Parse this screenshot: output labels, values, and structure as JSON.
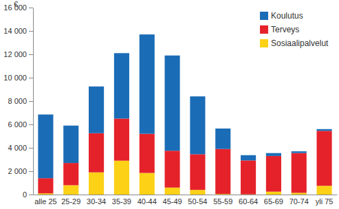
{
  "chart_data": {
    "type": "bar",
    "stacked": true,
    "y_label": "€",
    "categories": [
      "alle 25",
      "25-29",
      "30-34",
      "35-39",
      "40-44",
      "45-49",
      "50-54",
      "55-59",
      "60-64",
      "65-69",
      "70-74",
      "yli 75"
    ],
    "series": [
      {
        "name": "Sosiaalipalvelut",
        "color": "#fcd116",
        "values": [
          100,
          800,
          1900,
          2900,
          1850,
          600,
          400,
          50,
          20,
          250,
          150,
          750
        ]
      },
      {
        "name": "Terveys",
        "color": "#e5222a",
        "values": [
          1300,
          1900,
          3350,
          3600,
          3350,
          3150,
          3050,
          3850,
          2900,
          3050,
          3400,
          4700
        ]
      },
      {
        "name": "Koulutus",
        "color": "#1b6cb6",
        "values": [
          5450,
          3200,
          4000,
          5600,
          8500,
          8150,
          4950,
          1750,
          450,
          250,
          150,
          150
        ]
      }
    ],
    "ylim": [
      0,
      16000
    ],
    "yticks": [
      0,
      {
        "value": 2000,
        "label": "2 000"
      },
      {
        "value": 4000,
        "label": "4 000"
      },
      {
        "value": 6000,
        "label": "6 000"
      },
      {
        "value": 8000,
        "label": "8 000"
      },
      {
        "value": 10000,
        "label": "10 000"
      },
      {
        "value": 12000,
        "label": "12 000"
      },
      {
        "value": 14000,
        "label": "14 000"
      },
      {
        "value": 16000,
        "label": "16 000"
      }
    ],
    "grid": false,
    "legend": "top-right"
  }
}
